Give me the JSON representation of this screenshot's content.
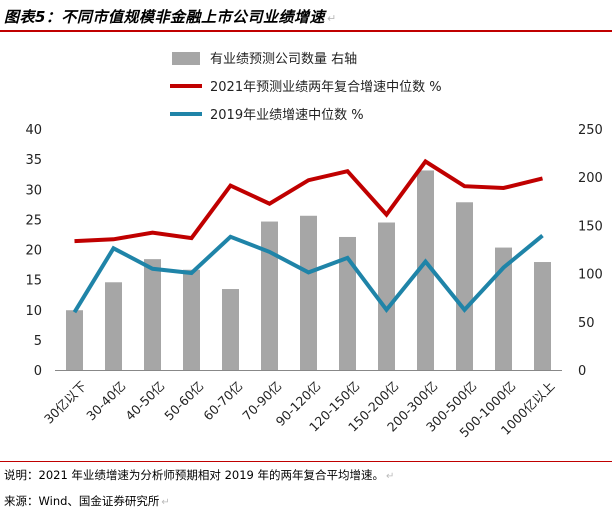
{
  "header": {
    "title": "图表5：不同市值规模非金融上市公司业绩增速",
    "edit_mark": "↵"
  },
  "footer": {
    "note": "说明：2021 年业绩增速为分析师预期相对 2019 年的两年复合平均增速。",
    "source": "来源：Wind、国金证券研究所",
    "edit_mark": "↵"
  },
  "colors": {
    "bar": "#a6a6a6",
    "line_2021": "#c00000",
    "line_2019": "#1f84a8",
    "rule": "#c00000"
  },
  "chart_data": {
    "type": "bar+line",
    "categories": [
      "30亿以下",
      "30-40亿",
      "40-50亿",
      "50-60亿",
      "60-70亿",
      "70-90亿",
      "90-120亿",
      "120-150亿",
      "150-200亿",
      "200-300亿",
      "300-500亿",
      "500-1000亿",
      "1000亿以上"
    ],
    "left_axis": {
      "ylim": [
        0,
        40
      ],
      "ticks": [
        "0",
        "5",
        "10",
        "15",
        "20",
        "25",
        "30",
        "35",
        "40"
      ]
    },
    "right_axis": {
      "ylim": [
        0,
        250
      ],
      "ticks": [
        "0",
        "50",
        "100",
        "150",
        "200",
        "250"
      ]
    },
    "series": [
      {
        "name": "有业绩预测公司数量 右轴",
        "kind": "bar",
        "axis": "right",
        "values": [
          62,
          91,
          115,
          104,
          84,
          154,
          160,
          138,
          153,
          207,
          174,
          127,
          112
        ]
      },
      {
        "name": "2021年预测业绩两年复合增速中位数 %",
        "kind": "line",
        "axis": "left",
        "values": [
          21.4,
          21.7,
          22.8,
          21.9,
          30.6,
          27.6,
          31.5,
          33.0,
          25.8,
          34.6,
          30.5,
          30.2,
          31.8
        ]
      },
      {
        "name": "2019年业绩增速中位数 %",
        "kind": "line",
        "axis": "left",
        "values": [
          9.6,
          20.2,
          16.8,
          16.1,
          22.1,
          19.6,
          16.2,
          18.6,
          10.0,
          18.0,
          10.0,
          17.0,
          22.3
        ]
      }
    ],
    "legend_position": "top-center",
    "grid": false
  }
}
